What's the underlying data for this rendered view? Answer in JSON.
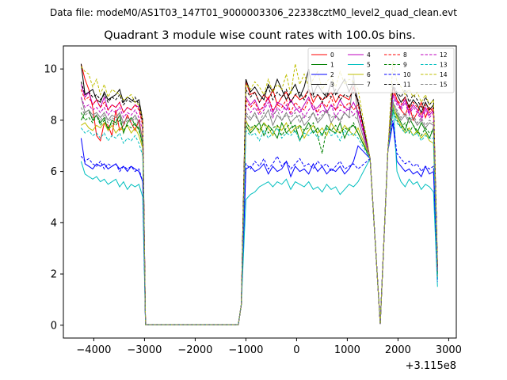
{
  "suptitle": "Data file: modeM0/AS1T03_147T01_9000003306_22338cztM0_level2_quad_clean.evt",
  "chart_data": {
    "type": "line",
    "title": "Quadrant 3 module wise count rates with 100.0s bins.",
    "xlabel": "",
    "ylabel": "",
    "offset_text": "+3.115e8",
    "xlim": [
      -4600,
      3150
    ],
    "ylim": [
      -0.5,
      10.9
    ],
    "xticks": [
      -4000,
      -3000,
      -2000,
      -1000,
      0,
      1000,
      2000,
      3000
    ],
    "xtick_labels": [
      "−4000",
      "−3000",
      "−2000",
      "−1000",
      "0",
      "1000",
      "2000",
      "3000"
    ],
    "yticks": [
      0,
      2,
      4,
      6,
      8,
      10
    ],
    "ytick_labels": [
      "0",
      "2",
      "4",
      "6",
      "8",
      "10"
    ],
    "grid": false,
    "legend_position": "top-right",
    "series": [
      {
        "name": "0",
        "color": "#ff0000",
        "dash": "solid",
        "segA": [
          10.2,
          9.6,
          9.2,
          8.5,
          7.4,
          7.2,
          7.9,
          7.8,
          7.4,
          8.4,
          7.6,
          7.8,
          8.2,
          7.9,
          7.6,
          8.0,
          7.2
        ],
        "segB": [
          9.5,
          9.0,
          9.1,
          8.7,
          9.0,
          8.8,
          9.2,
          8.6,
          8.9,
          9.1,
          8.7,
          9.0,
          8.8,
          8.9,
          9.2,
          8.7,
          9.0,
          8.8,
          8.9,
          9.1,
          8.7,
          9.0,
          8.9,
          8.8,
          9.3,
          8.7
        ],
        "segC": [
          9.3,
          8.8,
          8.4,
          8.2,
          8.6,
          8.0,
          8.3,
          8.7,
          8.1,
          8.5,
          8.3,
          2.3
        ]
      },
      {
        "name": "1",
        "color": "#008000",
        "dash": "solid",
        "segA": [
          8.0,
          8.3,
          8.4,
          8.0,
          8.2,
          7.9,
          8.1,
          7.6,
          8.0,
          7.9,
          8.2,
          7.5,
          7.9,
          8.1,
          7.8,
          7.7,
          7.0
        ],
        "segB": [
          7.8,
          7.5,
          7.7,
          7.9,
          7.4,
          7.8,
          7.6,
          7.3,
          7.9,
          7.5,
          7.7,
          7.8,
          7.2,
          7.6,
          7.9,
          7.5,
          7.7,
          7.4,
          7.8,
          7.6,
          7.5,
          7.9,
          7.3,
          7.7,
          7.8,
          7.5
        ],
        "segC": [
          8.5,
          8.2,
          7.9,
          7.6,
          8.1,
          7.8,
          7.5,
          7.9,
          7.6,
          7.3,
          7.7,
          2.0
        ]
      },
      {
        "name": "2",
        "color": "#0000ff",
        "dash": "solid",
        "segA": [
          7.3,
          6.3,
          6.2,
          6.1,
          6.3,
          6.2,
          6.3,
          6.1,
          6.2,
          6.3,
          6.1,
          6.2,
          6.0,
          6.2,
          6.1,
          6.0,
          5.6
        ],
        "segB": [
          6.1,
          6.2,
          6.0,
          6.1,
          6.3,
          5.9,
          6.2,
          6.0,
          6.1,
          6.4,
          5.8,
          6.2,
          6.0,
          6.1,
          5.9,
          6.3,
          6.0,
          6.2,
          5.9,
          6.1,
          6.0,
          6.2,
          5.9,
          6.1,
          6.4,
          7.0
        ],
        "segC": [
          7.9,
          6.4,
          6.2,
          6.0,
          6.1,
          5.9,
          6.0,
          5.8,
          6.2,
          5.9,
          6.0,
          1.8
        ]
      },
      {
        "name": "3",
        "color": "#000000",
        "dash": "solid",
        "segA": [
          10.2,
          9.0,
          9.1,
          9.2,
          8.8,
          8.7,
          9.1,
          8.8,
          8.9,
          9.0,
          9.2,
          8.7,
          8.9,
          8.8,
          8.7,
          8.8,
          8.0
        ],
        "segB": [
          9.6,
          9.1,
          9.3,
          9.0,
          8.8,
          9.4,
          9.1,
          9.6,
          9.2,
          8.8,
          9.1,
          9.4,
          8.9,
          9.3,
          10.0,
          9.0,
          9.4,
          9.1,
          8.9,
          9.5,
          9.0,
          9.3,
          9.6,
          9.1,
          9.5,
          8.7
        ],
        "segC": [
          9.3,
          9.0,
          8.7,
          8.9,
          8.5,
          8.8,
          8.6,
          8.3,
          8.7,
          8.4,
          8.6,
          2.3
        ]
      },
      {
        "name": "4",
        "color": "#bf00bf",
        "dash": "solid",
        "segA": [
          9.4,
          8.9,
          9.1,
          8.6,
          8.8,
          8.5,
          8.9,
          8.4,
          8.6,
          8.5,
          8.7,
          8.3,
          8.5,
          8.4,
          8.6,
          8.5,
          7.9
        ],
        "segB": [
          8.9,
          8.6,
          8.8,
          8.4,
          8.5,
          8.9,
          8.3,
          8.7,
          8.6,
          8.4,
          8.8,
          8.5,
          8.3,
          8.6,
          8.9,
          8.4,
          8.5,
          8.7,
          8.3,
          8.6,
          8.4,
          8.8,
          8.5,
          8.4,
          8.7,
          8.3
        ],
        "segC": [
          9.0,
          8.7,
          8.5,
          8.8,
          8.3,
          8.6,
          8.4,
          8.1,
          8.5,
          8.2,
          8.4,
          2.2
        ]
      },
      {
        "name": "5",
        "color": "#00bfbf",
        "dash": "solid",
        "segA": [
          6.4,
          5.9,
          5.8,
          5.7,
          5.8,
          5.6,
          5.7,
          5.5,
          5.6,
          5.7,
          5.4,
          5.6,
          5.3,
          5.5,
          5.4,
          5.5,
          5.0
        ],
        "segB": [
          4.9,
          5.1,
          5.2,
          5.4,
          5.5,
          5.6,
          5.4,
          5.6,
          5.5,
          5.7,
          5.3,
          5.6,
          5.5,
          5.4,
          5.6,
          5.3,
          5.4,
          5.2,
          5.5,
          5.3,
          5.4,
          5.1,
          5.3,
          5.5,
          5.4,
          5.6
        ],
        "segC": [
          8.8,
          6.0,
          5.6,
          5.4,
          5.7,
          5.5,
          5.6,
          5.3,
          5.5,
          5.4,
          5.2,
          1.5
        ]
      },
      {
        "name": "6",
        "color": "#bfbf00",
        "dash": "solid",
        "segA": [
          7.8,
          7.9,
          7.7,
          7.6,
          7.8,
          7.7,
          7.9,
          7.6,
          7.8,
          7.5,
          7.7,
          7.6,
          7.8,
          7.5,
          7.7,
          7.4,
          6.9
        ],
        "segB": [
          8.0,
          7.6,
          7.8,
          7.5,
          7.9,
          7.7,
          7.4,
          7.8,
          7.6,
          7.9,
          7.5,
          7.7,
          7.8,
          7.3,
          7.6,
          7.8,
          7.5,
          7.7,
          7.4,
          7.9,
          7.6,
          7.5,
          7.8,
          7.6,
          7.4,
          7.7
        ],
        "segC": [
          8.6,
          8.1,
          7.8,
          7.5,
          7.7,
          7.4,
          7.6,
          7.3,
          7.5,
          7.2,
          7.1,
          1.9
        ]
      },
      {
        "name": "7",
        "color": "#808080",
        "dash": "solid",
        "segA": [
          8.9,
          8.3,
          8.4,
          8.2,
          8.3,
          8.1,
          8.3,
          8.0,
          8.2,
          8.1,
          8.3,
          7.9,
          8.1,
          8.0,
          8.2,
          7.9,
          7.2
        ],
        "segB": [
          8.2,
          8.0,
          8.3,
          7.9,
          8.1,
          8.4,
          7.8,
          8.2,
          8.0,
          8.3,
          7.9,
          8.1,
          8.2,
          7.8,
          8.0,
          8.3,
          7.9,
          8.1,
          8.4,
          7.9,
          8.2,
          8.0,
          8.3,
          8.1,
          9.8,
          8.0
        ],
        "segC": [
          8.7,
          8.3,
          8.0,
          8.2,
          7.9,
          8.1,
          7.8,
          8.0,
          7.7,
          7.9,
          7.8,
          2.1
        ]
      },
      {
        "name": "8",
        "color": "#ff0000",
        "dash": "dashed",
        "segA": [
          9.2,
          8.8,
          8.9,
          8.6,
          8.8,
          8.5,
          8.7,
          8.4,
          8.6,
          8.5,
          8.7,
          8.3,
          8.5,
          8.4,
          8.6,
          8.4,
          7.8
        ],
        "segB": [
          8.8,
          8.5,
          8.7,
          8.3,
          8.6,
          8.9,
          8.4,
          8.6,
          8.5,
          8.8,
          8.3,
          8.7,
          8.5,
          8.4,
          8.8,
          8.6,
          8.3,
          8.7,
          8.5,
          8.9,
          8.4,
          8.6,
          8.5,
          8.7,
          8.4,
          8.6
        ],
        "segC": [
          9.1,
          8.8,
          8.6,
          8.9,
          8.4,
          8.7,
          8.5,
          8.2,
          8.6,
          8.3,
          8.5,
          2.2
        ]
      },
      {
        "name": "9",
        "color": "#008000",
        "dash": "dashed",
        "segA": [
          8.3,
          8.0,
          8.1,
          7.9,
          8.2,
          7.8,
          8.0,
          7.7,
          7.9,
          7.8,
          8.0,
          7.6,
          7.8,
          7.7,
          7.9,
          7.6,
          7.1
        ],
        "segB": [
          7.9,
          7.7,
          7.8,
          7.6,
          7.9,
          7.5,
          7.7,
          7.8,
          7.4,
          7.7,
          7.9,
          7.5,
          7.8,
          7.6,
          7.7,
          7.9,
          7.4,
          6.7,
          7.7,
          7.6,
          7.8,
          7.5,
          7.7,
          7.6,
          7.9,
          7.5
        ],
        "segC": [
          8.4,
          8.0,
          7.7,
          7.9,
          7.5,
          7.8,
          7.6,
          7.4,
          7.7,
          7.5,
          7.6,
          2.0
        ]
      },
      {
        "name": "10",
        "color": "#0000ff",
        "dash": "dashed",
        "segA": [
          6.6,
          6.4,
          6.5,
          6.3,
          6.2,
          6.4,
          6.1,
          6.3,
          6.2,
          6.3,
          6.0,
          6.2,
          6.1,
          6.2,
          6.0,
          6.1,
          5.6
        ],
        "segB": [
          6.3,
          6.1,
          6.4,
          6.2,
          6.5,
          6.1,
          6.3,
          6.6,
          6.2,
          6.4,
          6.1,
          6.3,
          6.5,
          6.2,
          6.3,
          6.1,
          6.4,
          6.2,
          6.3,
          6.0,
          6.2,
          6.4,
          6.1,
          6.2,
          6.3,
          6.1
        ],
        "segC": [
          8.0,
          6.7,
          6.5,
          6.3,
          6.4,
          6.2,
          6.3,
          6.0,
          6.2,
          6.1,
          6.2,
          1.7
        ]
      },
      {
        "name": "11",
        "color": "#000000",
        "dash": "dashed",
        "segA": [
          9.5,
          9.0,
          9.1,
          8.9,
          9.0,
          8.8,
          9.0,
          8.7,
          8.9,
          8.8,
          9.0,
          8.6,
          8.8,
          8.7,
          8.9,
          8.6,
          7.9
        ],
        "segB": [
          9.2,
          8.9,
          9.1,
          8.7,
          9.0,
          9.3,
          8.8,
          9.1,
          8.9,
          9.2,
          8.7,
          9.0,
          9.1,
          8.8,
          9.2,
          8.9,
          9.0,
          8.7,
          9.1,
          8.9,
          9.2,
          8.8,
          9.0,
          8.9,
          9.1,
          8.8
        ],
        "segC": [
          9.4,
          9.1,
          8.9,
          9.2,
          8.7,
          9.0,
          8.8,
          8.5,
          8.9,
          8.6,
          8.8,
          2.3
        ]
      },
      {
        "name": "12",
        "color": "#bf00bf",
        "dash": "dashed",
        "segA": [
          8.9,
          8.5,
          8.6,
          8.4,
          8.5,
          8.3,
          8.5,
          8.2,
          8.4,
          8.3,
          8.5,
          8.1,
          8.3,
          8.2,
          8.4,
          8.1,
          7.6
        ],
        "segB": [
          8.6,
          8.3,
          8.5,
          8.2,
          8.4,
          8.7,
          8.1,
          8.5,
          8.3,
          8.6,
          8.2,
          8.4,
          8.5,
          8.1,
          8.4,
          8.6,
          8.2,
          8.4,
          8.3,
          8.6,
          8.1,
          8.4,
          8.3,
          8.5,
          8.2,
          8.4
        ],
        "segC": [
          8.9,
          8.6,
          8.4,
          8.7,
          8.2,
          8.5,
          8.3,
          8.0,
          8.4,
          8.1,
          8.3,
          2.1
        ]
      },
      {
        "name": "13",
        "color": "#00bfbf",
        "dash": "dashed",
        "segA": [
          7.7,
          7.5,
          7.6,
          7.4,
          7.5,
          7.3,
          7.5,
          7.2,
          7.4,
          7.3,
          7.5,
          7.1,
          7.3,
          7.2,
          7.4,
          7.1,
          6.6
        ],
        "segB": [
          7.6,
          7.4,
          7.5,
          7.2,
          7.6,
          7.3,
          7.5,
          7.7,
          7.3,
          7.5,
          7.4,
          7.6,
          7.2,
          7.5,
          7.4,
          7.6,
          7.3,
          7.5,
          7.7,
          7.4,
          7.5,
          7.2,
          7.6,
          7.4,
          7.5,
          7.3
        ],
        "segC": [
          8.3,
          7.9,
          7.7,
          7.5,
          7.6,
          7.4,
          7.5,
          7.2,
          7.4,
          7.3,
          7.3,
          1.8
        ]
      },
      {
        "name": "14",
        "color": "#bfbf00",
        "dash": "dashed",
        "segA": [
          10.1,
          9.9,
          9.8,
          9.3,
          9.6,
          9.0,
          9.4,
          8.9,
          9.2,
          9.1,
          9.0,
          8.8,
          8.9,
          9.0,
          8.7,
          8.6,
          8.0
        ],
        "segB": [
          9.4,
          9.2,
          9.5,
          9.3,
          9.0,
          9.6,
          9.1,
          9.4,
          9.2,
          9.8,
          9.0,
          10.2,
          9.4,
          9.8,
          9.3,
          9.6,
          9.9,
          9.2,
          9.5,
          9.7,
          9.3,
          9.9,
          9.4,
          9.6,
          9.5,
          9.2
        ],
        "segC": [
          10.3,
          9.5,
          9.3,
          9.0,
          9.2,
          8.9,
          9.1,
          8.7,
          9.0,
          8.6,
          8.8,
          2.4
        ]
      },
      {
        "name": "15",
        "color": "#808080",
        "dash": "dashed",
        "segA": [
          8.5,
          8.2,
          8.3,
          8.1,
          8.2,
          8.0,
          8.2,
          7.9,
          8.1,
          8.0,
          8.2,
          7.8,
          8.0,
          7.9,
          8.1,
          7.8,
          7.3
        ],
        "segB": [
          8.3,
          8.1,
          8.2,
          7.9,
          8.3,
          8.0,
          8.2,
          8.4,
          8.0,
          8.2,
          8.1,
          8.3,
          7.9,
          8.2,
          8.1,
          8.3,
          8.0,
          8.2,
          8.4,
          8.1,
          8.2,
          7.9,
          8.3,
          8.1,
          8.2,
          8.0
        ],
        "segC": [
          8.7,
          8.4,
          8.1,
          8.3,
          8.0,
          8.2,
          7.9,
          8.1,
          7.8,
          8.0,
          7.9,
          2.1
        ]
      }
    ]
  }
}
